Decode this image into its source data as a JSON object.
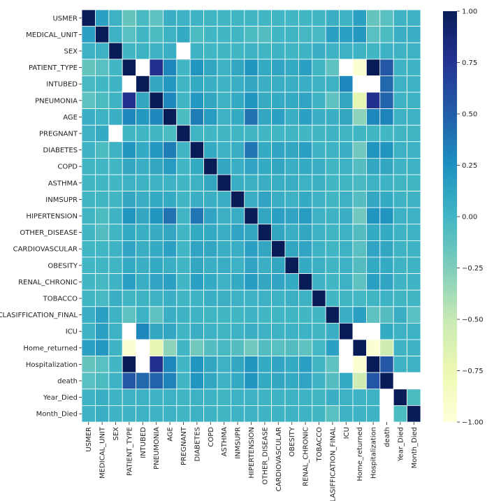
{
  "chart_data": {
    "type": "heatmap",
    "title": "",
    "xlabel": "",
    "ylabel": "",
    "colormap": "YlGnBu",
    "vmin": -1,
    "vmax": 1,
    "grid_lines": "white",
    "colorbar": {
      "placement": "right",
      "ticks": [
        1.0,
        0.75,
        0.5,
        0.25,
        0.0,
        -0.25,
        -0.5,
        -0.75,
        -1.0
      ],
      "tick_labels": [
        "1.00",
        "0.75",
        "0.50",
        "0.25",
        "0.00",
        "−0.25",
        "−0.50",
        "−0.75",
        "−1.00"
      ]
    },
    "variables": [
      "USMER",
      "MEDICAL_UNIT",
      "SEX",
      "PATIENT_TYPE",
      "INTUBED",
      "PNEUMONIA",
      "AGE",
      "PREGNANT",
      "DIABETES",
      "COPD",
      "ASTHMA",
      "INMSUPR",
      "HIPERTENSION",
      "OTHER_DISEASE",
      "CARDIOVASCULAR",
      "OBESITY",
      "RENAL_CHRONIC",
      "TOBACCO",
      "CLASIFFICATION_FINAL",
      "ICU",
      "Home_returned",
      "Hospitalization",
      "death",
      "Year_Died",
      "Month_Died"
    ],
    "values": [
      [
        1.0,
        0.15,
        0.03,
        -0.15,
        -0.03,
        -0.12,
        0.05,
        0.03,
        0.02,
        0.01,
        0.0,
        0.01,
        0.01,
        0.0,
        0.01,
        0.0,
        0.0,
        0.01,
        0.05,
        0.02,
        0.15,
        -0.15,
        -0.1,
        0.02,
        0.02
      ],
      [
        0.15,
        1.0,
        0.03,
        -0.1,
        0.0,
        -0.05,
        0.02,
        0.08,
        -0.05,
        0.0,
        0.0,
        0.01,
        -0.05,
        -0.07,
        0.0,
        0.01,
        -0.02,
        -0.03,
        0.15,
        0.15,
        0.2,
        -0.1,
        -0.05,
        0.05,
        0.05
      ],
      [
        0.03,
        0.03,
        1.0,
        0.0,
        0.02,
        0.02,
        0.05,
        null,
        0.02,
        0.0,
        0.0,
        0.0,
        0.02,
        0.01,
        0.02,
        0.01,
        0.02,
        0.05,
        0.02,
        0.03,
        0.02,
        0.0,
        0.03,
        0.02,
        0.02
      ],
      [
        -0.15,
        -0.1,
        0.0,
        1.0,
        null,
        0.78,
        0.3,
        0.0,
        0.22,
        0.1,
        0.03,
        0.1,
        0.22,
        0.08,
        0.12,
        0.08,
        0.15,
        0.01,
        -0.12,
        null,
        -0.95,
        1.0,
        0.55,
        0.02,
        0.02
      ],
      [
        -0.03,
        0.0,
        0.02,
        null,
        1.0,
        0.1,
        0.2,
        0.01,
        0.08,
        0.05,
        0.02,
        0.05,
        0.1,
        0.05,
        0.05,
        0.05,
        0.06,
        0.02,
        0.03,
        0.3,
        null,
        null,
        0.45,
        0.03,
        0.03
      ],
      [
        -0.12,
        -0.05,
        0.02,
        0.78,
        0.1,
        1.0,
        0.3,
        0.01,
        0.2,
        0.1,
        0.02,
        0.08,
        0.22,
        0.07,
        0.08,
        0.08,
        0.12,
        0.02,
        -0.12,
        0.1,
        -0.7,
        0.78,
        0.48,
        0.02,
        0.02
      ],
      [
        0.05,
        0.02,
        0.05,
        0.3,
        0.2,
        0.3,
        1.0,
        -0.05,
        0.35,
        0.18,
        0.03,
        0.08,
        0.4,
        0.1,
        0.15,
        0.05,
        0.15,
        0.05,
        0.05,
        0.1,
        -0.3,
        0.3,
        0.32,
        0.03,
        0.03
      ],
      [
        0.03,
        0.08,
        null,
        0.0,
        0.01,
        0.01,
        -0.05,
        1.0,
        0.01,
        0.0,
        0.0,
        0.0,
        0.01,
        0.0,
        0.0,
        0.01,
        0.0,
        0.0,
        0.02,
        0.01,
        0.0,
        0.0,
        0.0,
        0.01,
        0.01
      ],
      [
        0.02,
        -0.05,
        0.02,
        0.22,
        0.08,
        0.2,
        0.35,
        0.01,
        1.0,
        0.08,
        0.03,
        0.05,
        0.38,
        0.08,
        0.12,
        0.1,
        0.15,
        0.02,
        0.02,
        0.05,
        -0.2,
        0.22,
        0.22,
        0.03,
        0.03
      ],
      [
        0.01,
        0.0,
        0.0,
        0.1,
        0.05,
        0.1,
        0.18,
        0.0,
        0.08,
        1.0,
        0.1,
        0.05,
        0.12,
        0.08,
        0.1,
        0.05,
        0.08,
        0.05,
        0.01,
        0.03,
        -0.08,
        0.1,
        0.1,
        0.02,
        0.02
      ],
      [
        0.0,
        0.0,
        0.0,
        0.03,
        0.02,
        0.02,
        0.03,
        0.0,
        0.03,
        0.1,
        1.0,
        0.05,
        0.04,
        0.05,
        0.05,
        0.06,
        0.03,
        0.04,
        0.0,
        0.01,
        -0.03,
        0.03,
        0.02,
        0.01,
        0.01
      ],
      [
        0.01,
        0.01,
        0.0,
        0.1,
        0.05,
        0.08,
        0.08,
        0.0,
        0.05,
        0.05,
        0.05,
        1.0,
        0.06,
        0.12,
        0.06,
        0.03,
        0.08,
        0.03,
        0.0,
        0.03,
        -0.08,
        0.1,
        0.08,
        0.02,
        0.02
      ],
      [
        0.01,
        -0.05,
        0.02,
        0.22,
        0.1,
        0.22,
        0.4,
        0.01,
        0.38,
        0.12,
        0.04,
        0.06,
        1.0,
        0.1,
        0.15,
        0.12,
        0.18,
        0.03,
        0.02,
        0.05,
        -0.2,
        0.22,
        0.22,
        0.03,
        0.03
      ],
      [
        0.0,
        -0.07,
        0.01,
        0.08,
        0.05,
        0.07,
        0.1,
        0.0,
        0.08,
        0.08,
        0.05,
        0.12,
        0.1,
        1.0,
        0.1,
        0.05,
        0.1,
        0.03,
        0.0,
        0.03,
        -0.07,
        0.08,
        0.08,
        0.02,
        0.02
      ],
      [
        0.01,
        0.0,
        0.02,
        0.12,
        0.05,
        0.08,
        0.15,
        0.0,
        0.12,
        0.1,
        0.05,
        0.06,
        0.15,
        0.1,
        1.0,
        0.1,
        0.12,
        0.03,
        0.01,
        0.03,
        -0.1,
        0.12,
        0.1,
        0.02,
        0.02
      ],
      [
        0.0,
        0.01,
        0.01,
        0.08,
        0.05,
        0.08,
        0.05,
        0.01,
        0.1,
        0.05,
        0.06,
        0.03,
        0.12,
        0.05,
        0.1,
        1.0,
        0.08,
        0.04,
        0.01,
        0.03,
        -0.07,
        0.08,
        0.08,
        0.02,
        0.02
      ],
      [
        0.0,
        -0.02,
        0.02,
        0.15,
        0.06,
        0.12,
        0.15,
        0.0,
        0.15,
        0.08,
        0.03,
        0.08,
        0.18,
        0.1,
        0.12,
        0.08,
        1.0,
        0.02,
        0.0,
        0.03,
        -0.12,
        0.15,
        0.12,
        0.02,
        0.02
      ],
      [
        0.01,
        -0.03,
        0.05,
        0.01,
        0.02,
        0.02,
        0.05,
        0.0,
        0.02,
        0.05,
        0.04,
        0.03,
        0.03,
        0.03,
        0.03,
        0.04,
        0.02,
        1.0,
        0.0,
        0.01,
        -0.01,
        0.01,
        0.02,
        0.01,
        0.01
      ],
      [
        0.05,
        0.15,
        0.02,
        -0.12,
        0.03,
        -0.12,
        0.05,
        0.02,
        0.02,
        0.01,
        0.0,
        0.0,
        0.02,
        0.0,
        0.01,
        0.01,
        0.0,
        0.0,
        1.0,
        0.05,
        0.15,
        -0.12,
        -0.08,
        0.05,
        -0.1
      ],
      [
        0.02,
        0.15,
        0.03,
        null,
        0.3,
        0.1,
        0.1,
        0.01,
        0.05,
        0.03,
        0.01,
        0.03,
        0.05,
        0.03,
        0.03,
        0.03,
        0.03,
        0.01,
        0.05,
        1.0,
        null,
        null,
        0.08,
        0.03,
        0.03
      ],
      [
        0.15,
        0.2,
        0.02,
        -0.95,
        null,
        -0.7,
        -0.3,
        0.0,
        -0.2,
        -0.08,
        -0.03,
        -0.08,
        -0.2,
        -0.07,
        -0.1,
        -0.07,
        -0.12,
        -0.01,
        0.15,
        null,
        1.0,
        -0.95,
        -0.55,
        0.02,
        0.02
      ],
      [
        -0.15,
        -0.1,
        0.0,
        1.0,
        null,
        0.78,
        0.3,
        0.0,
        0.22,
        0.1,
        0.03,
        0.1,
        0.22,
        0.08,
        0.12,
        0.08,
        0.15,
        0.01,
        -0.12,
        null,
        -0.95,
        1.0,
        0.55,
        0.02,
        0.02
      ],
      [
        -0.1,
        -0.05,
        0.03,
        0.55,
        0.45,
        0.48,
        0.32,
        0.0,
        0.22,
        0.1,
        0.02,
        0.08,
        0.22,
        0.08,
        0.1,
        0.08,
        0.12,
        0.02,
        -0.08,
        0.08,
        -0.55,
        0.55,
        1.0,
        null,
        null
      ],
      [
        0.02,
        0.05,
        0.02,
        0.02,
        0.03,
        0.02,
        0.03,
        0.01,
        0.03,
        0.02,
        0.01,
        0.02,
        0.03,
        0.02,
        0.02,
        0.02,
        0.02,
        0.01,
        0.05,
        0.03,
        0.02,
        0.02,
        null,
        1.0,
        -0.05
      ],
      [
        0.02,
        0.05,
        0.02,
        0.02,
        0.03,
        0.02,
        0.03,
        0.01,
        0.03,
        0.02,
        0.01,
        0.02,
        0.03,
        0.02,
        0.02,
        0.02,
        0.02,
        0.01,
        -0.1,
        0.03,
        0.02,
        0.02,
        null,
        -0.05,
        1.0
      ]
    ]
  }
}
